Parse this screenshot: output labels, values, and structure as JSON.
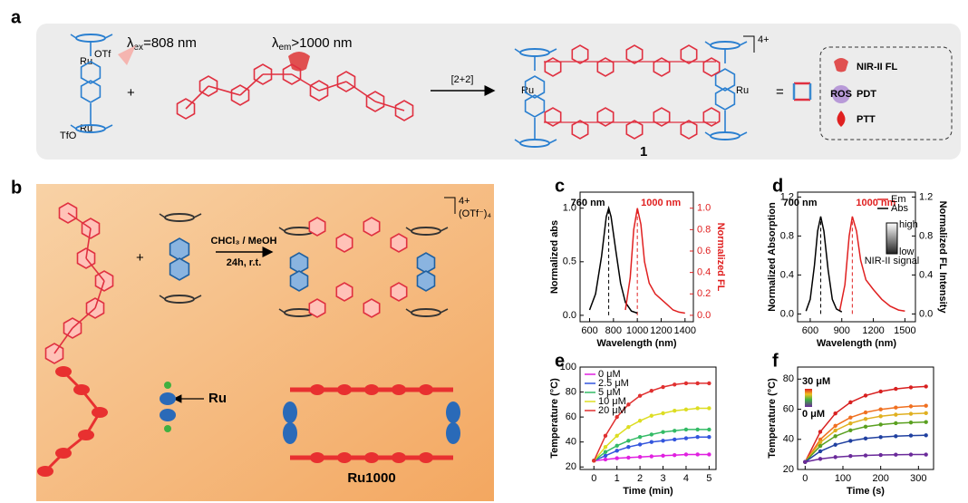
{
  "panel_a": {
    "label": "a",
    "excitation": {
      "symbol": "λ",
      "sub": "ex",
      "text": "=808 nm"
    },
    "emission": {
      "symbol": "λ",
      "sub": "em",
      "text": ">1000 nm"
    },
    "plus": "+",
    "reaction": "[2+2]",
    "charge": "4+",
    "compound": "1",
    "equals": "=",
    "legend": [
      "NIR-II FL",
      "PDT",
      "PTT"
    ],
    "ros": "ROS",
    "atoms": {
      "ru": "Ru",
      "otf": "OTf",
      "tfo": "TfO"
    }
  },
  "panel_b": {
    "label": "b",
    "plus": "+",
    "conditions": [
      "CHCl₃ / MeOH",
      "24h, r.t."
    ],
    "charge": "4+",
    "counterion": "(OTf⁻)₄",
    "ru_pointer": "Ru",
    "product": "Ru1000"
  },
  "chart_data": [
    {
      "type": "line",
      "panel_label": "c",
      "xlabel": "Wavelength (nm)",
      "ylabel": "Normalized abs",
      "y2label": "Normalized FL",
      "y2_color": "#e02020",
      "xlim": [
        520,
        1470
      ],
      "xticks": [
        600,
        800,
        1000,
        1200,
        1400
      ],
      "ylim": [
        -0.06,
        1.15
      ],
      "yticks": [
        {
          "value": 0,
          "label": "0.0"
        },
        0.5,
        {
          "value": 1,
          "label": "1.0"
        }
      ],
      "y2lim": [
        -0.06,
        1.15
      ],
      "y2ticks": [
        {
          "value": 0,
          "label": "0.0"
        },
        0.2,
        0.4,
        0.6,
        0.8,
        {
          "value": 1,
          "label": "1.0"
        }
      ],
      "vlines": [
        {
          "value": 760,
          "label": "760 nm",
          "color": "#000000"
        },
        {
          "value": 1000,
          "label": "1000 nm",
          "color": "#e02020"
        }
      ],
      "series": [
        {
          "color": "#000000",
          "x": [
            600,
            650,
            700,
            740,
            760,
            780,
            820,
            860,
            900,
            950,
            1000
          ],
          "values": [
            0.05,
            0.2,
            0.55,
            0.92,
            1.0,
            0.92,
            0.6,
            0.3,
            0.12,
            0.04,
            0.02
          ]
        },
        {
          "color": "#e02020",
          "axis": "y2",
          "x": [
            900,
            940,
            970,
            1000,
            1030,
            1060,
            1100,
            1150,
            1200,
            1250,
            1300,
            1350,
            1400
          ],
          "values": [
            0.05,
            0.35,
            0.8,
            1.0,
            0.85,
            0.5,
            0.3,
            0.2,
            0.15,
            0.1,
            0.05,
            0.03,
            0.02
          ]
        }
      ]
    },
    {
      "type": "line",
      "panel_label": "d",
      "xlabel": "Wavelength (nm)",
      "ylabel": "Normalized Absorption",
      "y2label": "Normalized FL Intensity",
      "y2_color": "#000000",
      "xlim": [
        480,
        1600
      ],
      "xticks": [
        600,
        900,
        1200,
        1500
      ],
      "ylim": [
        -0.08,
        1.25
      ],
      "yticks": [
        {
          "value": 0,
          "label": "0.0"
        },
        0.4,
        0.8,
        1.2
      ],
      "y2lim": [
        -0.08,
        1.25
      ],
      "y2ticks": [
        {
          "value": 0,
          "label": "0.0"
        },
        0.4,
        0.8,
        1.2
      ],
      "legend": "top-right",
      "inset": {
        "high": "high",
        "low": "low",
        "caption": "NIR-II signal"
      },
      "vlines": [
        {
          "value": 700,
          "label": "700 nm",
          "color": "#000000"
        },
        {
          "value": 1000,
          "label": "1000 nm",
          "color": "#e02020"
        }
      ],
      "series": [
        {
          "name": "Em",
          "color": "#e02020",
          "axis": "y2",
          "x": [
            880,
            930,
            970,
            1000,
            1040,
            1080,
            1130,
            1200,
            1280,
            1360,
            1440,
            1500
          ],
          "values": [
            0.03,
            0.3,
            0.8,
            1.0,
            0.85,
            0.55,
            0.35,
            0.25,
            0.15,
            0.08,
            0.04,
            0.03
          ]
        },
        {
          "name": "Abs",
          "color": "#000000",
          "x": [
            560,
            600,
            640,
            670,
            700,
            730,
            770,
            810,
            850,
            900
          ],
          "values": [
            0.03,
            0.15,
            0.5,
            0.85,
            1.0,
            0.85,
            0.45,
            0.15,
            0.05,
            0.02
          ]
        }
      ]
    },
    {
      "type": "line",
      "panel_label": "e",
      "xlabel": "Time (min)",
      "ylabel": "Temperature (°C)",
      "markers": true,
      "legend": "top-left",
      "xlim": [
        -0.6,
        5.3
      ],
      "xticks": [
        0,
        1,
        2,
        3,
        4,
        5
      ],
      "ylim": [
        18,
        100
      ],
      "yticks": [
        20,
        40,
        60,
        80,
        100
      ],
      "series": [
        {
          "name": "0 μM",
          "color": "#e020e0",
          "x": [
            0,
            0.5,
            1,
            1.5,
            2,
            2.5,
            3,
            3.5,
            4,
            4.5,
            5
          ],
          "values": [
            25,
            26,
            27,
            27.5,
            28,
            28.5,
            29,
            29.5,
            30,
            30,
            30
          ]
        },
        {
          "name": "2.5 μM",
          "color": "#3355dd",
          "x": [
            0,
            0.5,
            1,
            1.5,
            2,
            2.5,
            3,
            3.5,
            4,
            4.5,
            5
          ],
          "values": [
            25,
            29,
            33,
            36,
            38,
            40,
            41,
            42,
            43,
            44,
            44
          ]
        },
        {
          "name": "5 μM",
          "color": "#33bb66",
          "x": [
            0,
            0.5,
            1,
            1.5,
            2,
            2.5,
            3,
            3.5,
            4,
            4.5,
            5
          ],
          "values": [
            25,
            32,
            37,
            41,
            44,
            46,
            48,
            49,
            50,
            50,
            50
          ]
        },
        {
          "name": "10 μM",
          "color": "#dddd22",
          "x": [
            0,
            0.5,
            1,
            1.5,
            2,
            2.5,
            3,
            3.5,
            4,
            4.5,
            5
          ],
          "values": [
            25,
            36,
            45,
            52,
            57,
            61,
            63,
            65,
            66,
            67,
            67
          ]
        },
        {
          "name": "20 μM",
          "color": "#e03030",
          "x": [
            0,
            0.5,
            1,
            1.5,
            2,
            2.5,
            3,
            3.5,
            4,
            4.5,
            5
          ],
          "values": [
            25,
            45,
            60,
            70,
            77,
            81,
            84,
            86,
            87,
            87,
            87
          ]
        }
      ]
    },
    {
      "type": "line",
      "panel_label": "f",
      "xlabel": "Time (s)",
      "ylabel": "Temperature (°C)",
      "markers": true,
      "colorbar": {
        "top": "30 μM",
        "bottom": "0 μM"
      },
      "xlim": [
        -20,
        340
      ],
      "xticks": [
        0,
        100,
        200,
        300
      ],
      "ylim": [
        20,
        88
      ],
      "yticks": [
        20,
        40,
        60,
        80
      ],
      "series": [
        {
          "color": "#d82020",
          "x": [
            0,
            40,
            80,
            120,
            160,
            200,
            240,
            280,
            320
          ],
          "values": [
            25,
            45,
            57.2,
            64.6,
            69.1,
            71.8,
            73.5,
            74.5,
            75.1
          ]
        },
        {
          "color": "#f07020",
          "x": [
            0,
            40,
            80,
            120,
            160,
            200,
            240,
            280,
            320
          ],
          "values": [
            25,
            39.9,
            49,
            54.5,
            57.9,
            59.9,
            61.1,
            61.9,
            62.3
          ]
        },
        {
          "color": "#e0b020",
          "x": [
            0,
            40,
            80,
            120,
            160,
            200,
            240,
            280,
            320
          ],
          "values": [
            25,
            38,
            45.9,
            50.6,
            53.5,
            55.3,
            56.4,
            57,
            57.4
          ]
        },
        {
          "color": "#5aa020",
          "x": [
            0,
            40,
            80,
            120,
            160,
            200,
            240,
            280,
            320
          ],
          "values": [
            25,
            35.6,
            42.1,
            46,
            48.4,
            49.8,
            50.7,
            51.2,
            51.5
          ]
        },
        {
          "color": "#2040a0",
          "x": [
            0,
            40,
            80,
            120,
            160,
            200,
            240,
            280,
            320
          ],
          "values": [
            25,
            32.1,
            36.4,
            39,
            40.6,
            41.5,
            42.1,
            42.5,
            42.7
          ]
        },
        {
          "color": "#6a2a9a",
          "x": [
            0,
            40,
            80,
            120,
            160,
            200,
            240,
            280,
            320
          ],
          "values": [
            25,
            27,
            28.2,
            28.9,
            29.3,
            29.6,
            29.8,
            29.9,
            29.9
          ]
        }
      ]
    }
  ]
}
